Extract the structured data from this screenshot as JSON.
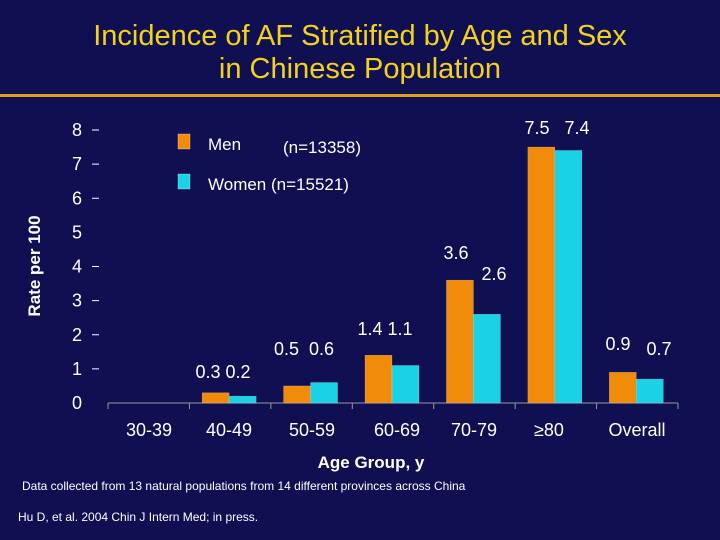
{
  "title": {
    "line1": "Incidence of AF Stratified by Age and Sex",
    "line2": "in Chinese Population"
  },
  "colors": {
    "background": "#0f0f52",
    "title": "#f2d21a",
    "rule": "#d9a21a",
    "men": "#f08c0a",
    "women": "#19d2e6",
    "text": "#ffffff"
  },
  "chart_data": {
    "type": "bar",
    "categories": [
      "30-39",
      "40-49",
      "50-59",
      "60-69",
      "70-79",
      "≥80",
      "Overall"
    ],
    "series": [
      {
        "name": "Men",
        "legend_label": "Men",
        "legend_count": "(n=13358)",
        "values": [
          null,
          0.3,
          0.5,
          1.4,
          3.6,
          7.5,
          0.9
        ]
      },
      {
        "name": "Women",
        "legend_label": "Women (n=15521)",
        "values": [
          null,
          0.2,
          0.6,
          1.1,
          2.6,
          7.4,
          0.7
        ]
      }
    ],
    "data_labels": [
      "",
      "0.3 0.2",
      "0.5  0.6",
      "1.4 1.1",
      "3.6|2.6",
      "7.5   7.4",
      "0.9|0.7"
    ],
    "ylabel": "Rate per 100",
    "xlabel": "Age Group, y",
    "ylim": [
      0,
      8
    ],
    "yticks": [
      0,
      1,
      2,
      3,
      4,
      5,
      6,
      7,
      8
    ],
    "legend_position": "top-left",
    "grid": false
  },
  "footnotes": [
    "Data collected from 13 natural populations from 14 different provinces across China",
    "Hu D, et al. 2004 Chin J Intern Med; in press."
  ]
}
